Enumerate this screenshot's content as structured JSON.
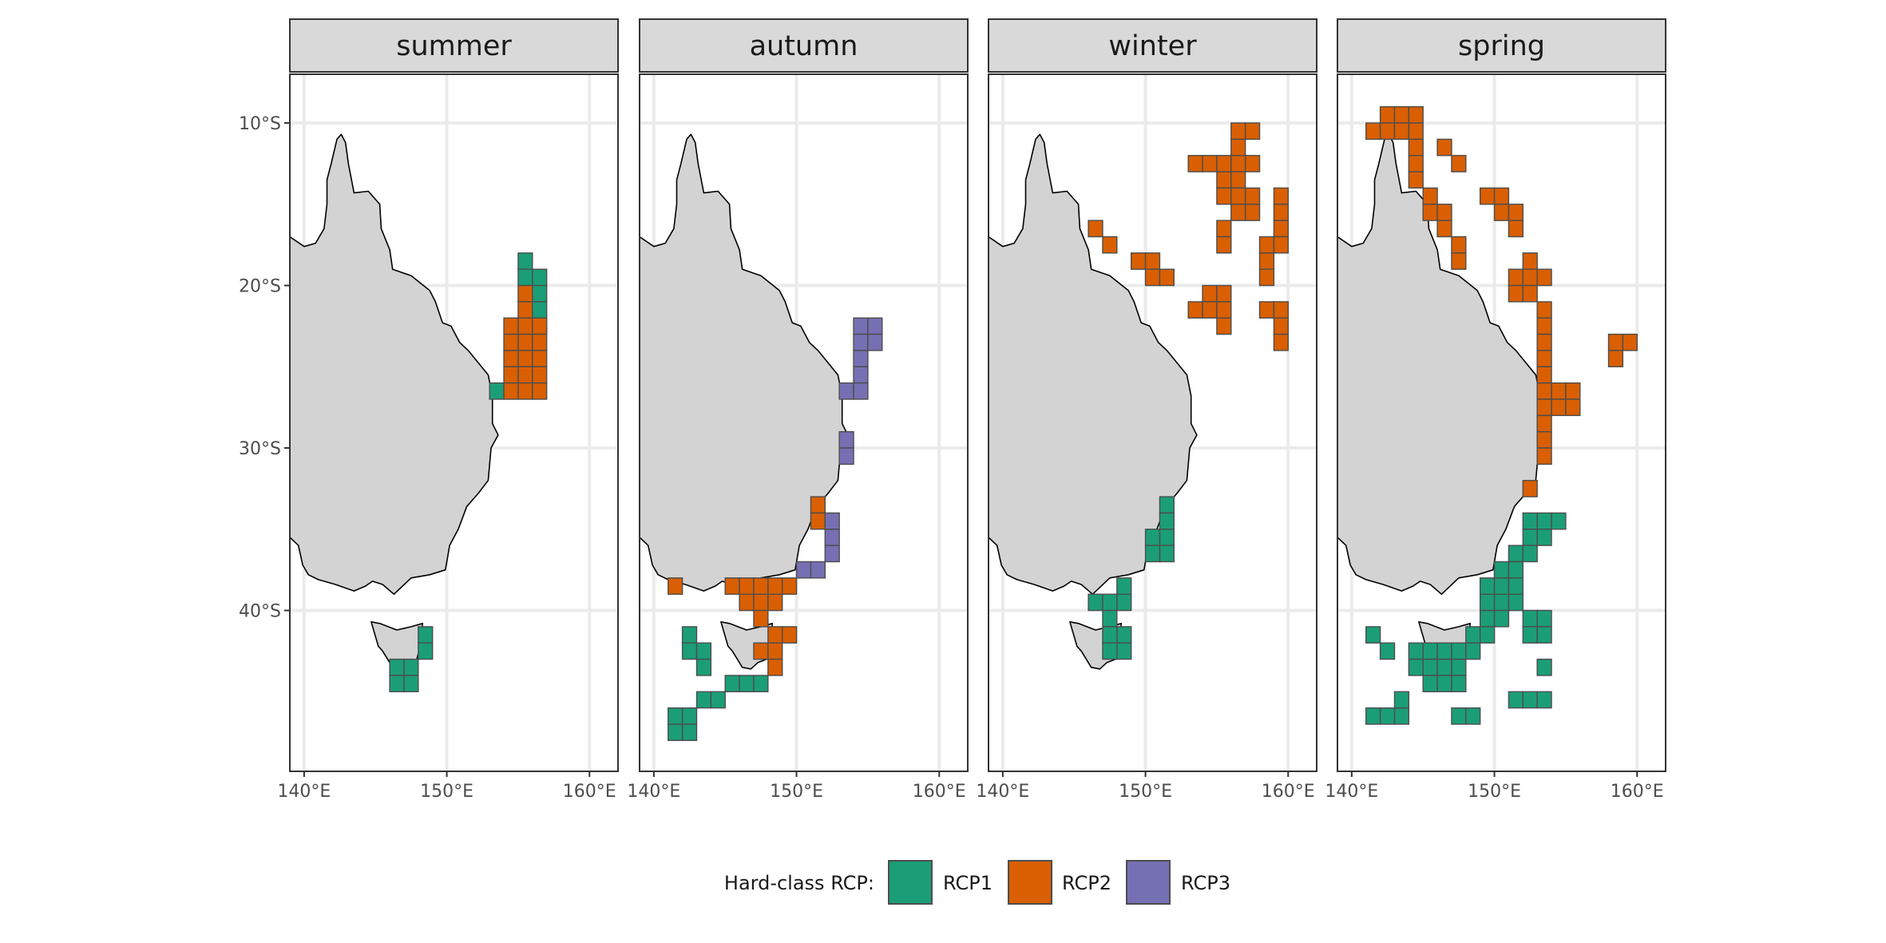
{
  "chart_data": {
    "type": "heatmap",
    "subtype": "faceted-map-grid",
    "facets": [
      "summer",
      "autumn",
      "winter",
      "spring"
    ],
    "x_axis": {
      "range": [
        139,
        162
      ],
      "ticks": [
        140,
        150,
        160
      ],
      "tick_labels": [
        "140°E",
        "150°E",
        "160°E"
      ]
    },
    "y_axis": {
      "range": [
        -49.9,
        -7
      ],
      "ticks": [
        -10,
        -20,
        -30,
        -40
      ],
      "tick_labels": [
        "10°S",
        "20°S",
        "30°S",
        "40°S"
      ]
    },
    "grid": true,
    "legend": {
      "position": "bottom",
      "title": "Hard-class RCP:",
      "items": [
        {
          "key": "RCP1",
          "label": "RCP1",
          "color": "#1B9E77"
        },
        {
          "key": "RCP2",
          "label": "RCP2",
          "color": "#D95F02"
        },
        {
          "key": "RCP3",
          "label": "RCP3",
          "color": "#7570B3"
        }
      ]
    },
    "cell_size_deg": 1,
    "land": {
      "fill": "#D3D3D3",
      "mainland": [
        [
          139,
          -17
        ],
        [
          140,
          -17.6
        ],
        [
          140.8,
          -17.4
        ],
        [
          141.4,
          -16.5
        ],
        [
          141.6,
          -15
        ],
        [
          141.6,
          -13.5
        ],
        [
          141.9,
          -12.5
        ],
        [
          142.3,
          -11
        ],
        [
          142.6,
          -10.7
        ],
        [
          142.9,
          -11.2
        ],
        [
          143.1,
          -12.5
        ],
        [
          143.5,
          -14.3
        ],
        [
          144.5,
          -14.2
        ],
        [
          145.3,
          -15
        ],
        [
          145.4,
          -16.5
        ],
        [
          146,
          -17.8
        ],
        [
          146.2,
          -19
        ],
        [
          147.5,
          -19.4
        ],
        [
          148.8,
          -20.3
        ],
        [
          149.2,
          -21
        ],
        [
          149.7,
          -22.3
        ],
        [
          150.3,
          -22.5
        ],
        [
          150.9,
          -23.5
        ],
        [
          151.5,
          -24
        ],
        [
          152.9,
          -25.5
        ],
        [
          153.2,
          -26.8
        ],
        [
          153.2,
          -28.5
        ],
        [
          153.6,
          -29.2
        ],
        [
          153.1,
          -30
        ],
        [
          153,
          -31
        ],
        [
          152.9,
          -32
        ],
        [
          152.2,
          -32.8
        ],
        [
          151.4,
          -33.6
        ],
        [
          150.8,
          -35
        ],
        [
          150.2,
          -36
        ],
        [
          149.9,
          -37.5
        ],
        [
          148.8,
          -37.8
        ],
        [
          147.5,
          -38
        ],
        [
          146.3,
          -39
        ],
        [
          145.5,
          -38.4
        ],
        [
          144.8,
          -38.2
        ],
        [
          144.3,
          -38.5
        ],
        [
          143.5,
          -38.8
        ],
        [
          142.2,
          -38.4
        ],
        [
          141,
          -38.1
        ],
        [
          140.3,
          -37.8
        ],
        [
          139.9,
          -37.2
        ],
        [
          139.6,
          -36
        ],
        [
          139,
          -35.5
        ]
      ],
      "tasmania": [
        [
          144.7,
          -40.7
        ],
        [
          145.3,
          -40.8
        ],
        [
          146.5,
          -41.2
        ],
        [
          147.5,
          -41
        ],
        [
          148.3,
          -40.8
        ],
        [
          148.2,
          -42
        ],
        [
          147.9,
          -43
        ],
        [
          147.3,
          -43.2
        ],
        [
          146.8,
          -43.6
        ],
        [
          146.2,
          -43.5
        ],
        [
          145.5,
          -42.5
        ],
        [
          145.2,
          -42.2
        ]
      ]
    },
    "cells": {
      "summer": [
        {
          "rcp": "RCP1",
          "lon": [
            155.5,
            155.5,
            156.5,
            156.5,
            156.5,
            153.5,
            148.5,
            148.5,
            147.5,
            147.5,
            146.5,
            146.5
          ],
          "lat": [
            -18.5,
            -19.5,
            -19.5,
            -20.5,
            -21.5,
            -26.5,
            -41.5,
            -42.5,
            -43.5,
            -44.5,
            -43.5,
            -44.5
          ]
        },
        {
          "rcp": "RCP2",
          "lon": [
            155.5,
            155.5,
            156.5,
            155.5,
            156.5,
            154.5,
            155.5,
            156.5,
            154.5,
            155.5,
            156.5,
            154.5,
            155.5,
            156.5,
            154.5,
            155.5,
            156.5,
            154.5
          ],
          "lat": [
            -20.5,
            -21.5,
            -22.5,
            -22.5,
            -22.5,
            -22.5,
            -23.5,
            -23.5,
            -23.5,
            -24.5,
            -24.5,
            -24.5,
            -25.5,
            -25.5,
            -25.5,
            -26.5,
            -26.5,
            -26.5
          ]
        }
      ],
      "autumn": [
        {
          "rcp": "RCP1",
          "lon": [
            142.5,
            142.5,
            143.5,
            143.5,
            141.5,
            142.5,
            143.5,
            144.5,
            145.5,
            146.5,
            147.5,
            141.5,
            142.5
          ],
          "lat": [
            -41.5,
            -42.5,
            -42.5,
            -43.5,
            -46.5,
            -46.5,
            -45.5,
            -45.5,
            -44.5,
            -44.5,
            -44.5,
            -47.5,
            -47.5
          ]
        },
        {
          "rcp": "RCP2",
          "lon": [
            151.5,
            151.5,
            141.5,
            145.5,
            146.5,
            147.5,
            148.5,
            149.5,
            146.5,
            147.5,
            148.5,
            147.5,
            148.5,
            149.5,
            147.5,
            148.5,
            148.5
          ],
          "lat": [
            -33.5,
            -34.5,
            -38.5,
            -38.5,
            -38.5,
            -38.5,
            -38.5,
            -38.5,
            -39.5,
            -39.5,
            -39.5,
            -40.5,
            -41.5,
            -41.5,
            -42.5,
            -42.5,
            -43.5
          ]
        },
        {
          "rcp": "RCP3",
          "lon": [
            154.5,
            155.5,
            154.5,
            155.5,
            154.5,
            154.5,
            153.5,
            154.5,
            153.5,
            153.5,
            152.5,
            152.5,
            152.5,
            150.5,
            151.5
          ],
          "lat": [
            -22.5,
            -22.5,
            -23.5,
            -23.5,
            -24.5,
            -25.5,
            -26.5,
            -26.5,
            -29.5,
            -30.5,
            -34.5,
            -35.5,
            -36.5,
            -37.5,
            -37.5
          ]
        }
      ],
      "winter": [
        {
          "rcp": "RCP1",
          "lon": [
            151.5,
            151.5,
            151.5,
            150.5,
            151.5,
            150.5,
            148.5,
            146.5,
            147.5,
            148.5,
            147.5,
            148.5,
            147.5,
            148.5,
            147.5
          ],
          "lat": [
            -33.5,
            -34.5,
            -35.5,
            -35.5,
            -36.5,
            -36.5,
            -38.5,
            -39.5,
            -39.5,
            -39.5,
            -40.5,
            -41.5,
            -41.5,
            -42.5,
            -42.5
          ]
        },
        {
          "rcp": "RCP2",
          "lon": [
            156.5,
            157.5,
            156.5,
            153.5,
            154.5,
            155.5,
            156.5,
            157.5,
            156.5,
            155.5,
            156.5,
            157.5,
            155.5,
            156.5,
            157.5,
            159.5,
            159.5,
            155.5,
            155.5,
            159.5,
            158.5,
            159.5,
            146.5,
            147.5,
            149.5,
            150.5,
            150.5,
            151.5,
            158.5,
            158.5,
            154.5,
            155.5,
            153.5,
            154.5,
            155.5,
            155.5,
            158.5,
            159.5,
            159.5,
            159.5
          ],
          "lat": [
            -10.5,
            -10.5,
            -11.5,
            -12.5,
            -12.5,
            -12.5,
            -12.5,
            -12.5,
            -13.5,
            -13.5,
            -14.5,
            -14.5,
            -14.5,
            -15.5,
            -15.5,
            -14.5,
            -15.5,
            -16.5,
            -17.5,
            -16.5,
            -17.5,
            -17.5,
            -16.5,
            -17.5,
            -18.5,
            -18.5,
            -19.5,
            -19.5,
            -18.5,
            -19.5,
            -20.5,
            -20.5,
            -21.5,
            -21.5,
            -21.5,
            -22.5,
            -21.5,
            -21.5,
            -22.5,
            -23.5
          ]
        }
      ],
      "spring": [
        {
          "rcp": "RCP1",
          "lon": [
            152.5,
            153.5,
            154.5,
            152.5,
            153.5,
            151.5,
            152.5,
            150.5,
            151.5,
            149.5,
            150.5,
            151.5,
            149.5,
            150.5,
            151.5,
            149.5,
            150.5,
            148.5,
            149.5,
            152.5,
            153.5,
            153.5,
            152.5,
            144.5,
            145.5,
            146.5,
            147.5,
            148.5,
            141.5,
            142.5,
            144.5,
            145.5,
            146.5,
            147.5,
            145.5,
            146.5,
            147.5,
            153.5,
            143.5,
            151.5,
            152.5,
            153.5,
            141.5,
            142.5,
            143.5,
            147.5,
            148.5
          ],
          "lat": [
            -34.5,
            -34.5,
            -34.5,
            -35.5,
            -35.5,
            -36.5,
            -36.5,
            -37.5,
            -37.5,
            -38.5,
            -38.5,
            -38.5,
            -39.5,
            -39.5,
            -39.5,
            -40.5,
            -40.5,
            -41.5,
            -41.5,
            -40.5,
            -40.5,
            -41.5,
            -41.5,
            -42.5,
            -42.5,
            -42.5,
            -42.5,
            -42.5,
            -41.5,
            -42.5,
            -43.5,
            -43.5,
            -43.5,
            -43.5,
            -44.5,
            -44.5,
            -44.5,
            -43.5,
            -46.5,
            -45.5,
            -45.5,
            -45.5,
            -46.5,
            -46.5,
            -45.5,
            -46.5,
            -46.5
          ]
        },
        {
          "rcp": "RCP2",
          "lon": [
            142.5,
            143.5,
            144.5,
            141.5,
            142.5,
            143.5,
            144.5,
            144.5,
            144.5,
            144.5,
            145.5,
            145.5,
            146.5,
            146.5,
            147.5,
            147.5,
            146.5,
            147.5,
            149.5,
            150.5,
            150.5,
            151.5,
            151.5,
            152.5,
            152.5,
            153.5,
            151.5,
            151.5,
            152.5,
            153.5,
            153.5,
            153.5,
            153.5,
            153.5,
            153.5,
            153.5,
            154.5,
            155.5,
            153.5,
            154.5,
            155.5,
            153.5,
            153.5,
            158.5,
            159.5,
            158.5,
            152.5
          ],
          "lat": [
            -9.5,
            -9.5,
            -9.5,
            -10.5,
            -10.5,
            -10.5,
            -10.5,
            -11.5,
            -12.5,
            -13.5,
            -14.5,
            -15.5,
            -15.5,
            -16.5,
            -17.5,
            -18.5,
            -11.5,
            -12.5,
            -14.5,
            -14.5,
            -15.5,
            -15.5,
            -16.5,
            -18.5,
            -19.5,
            -19.5,
            -19.5,
            -20.5,
            -20.5,
            -21.5,
            -22.5,
            -23.5,
            -24.5,
            -25.5,
            -26.5,
            -27.5,
            -26.5,
            -26.5,
            -28.5,
            -27.5,
            -27.5,
            -29.5,
            -30.5,
            -23.5,
            -23.5,
            -24.5,
            -32.5
          ]
        }
      ]
    }
  }
}
